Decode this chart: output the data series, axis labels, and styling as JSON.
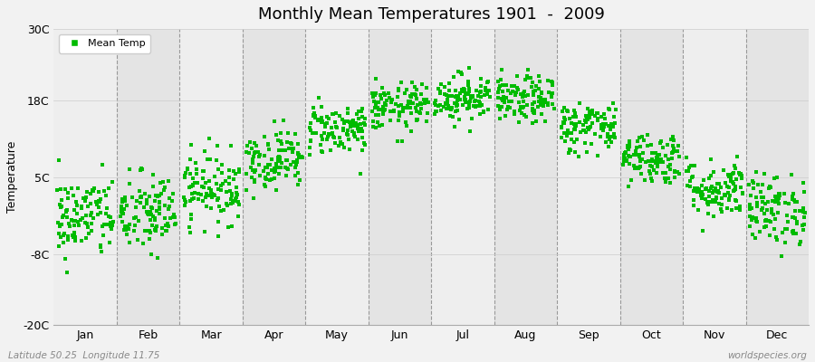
{
  "title": "Monthly Mean Temperatures 1901  -  2009",
  "ylabel": "Temperature",
  "footer_left": "Latitude 50.25  Longitude 11.75",
  "footer_right": "worldspecies.org",
  "legend_label": "Mean Temp",
  "dot_color": "#00bb00",
  "dot_size": 6,
  "years": 109,
  "month_labels": [
    "Jan",
    "Feb",
    "Mar",
    "Apr",
    "May",
    "Jun",
    "Jul",
    "Aug",
    "Sep",
    "Oct",
    "Nov",
    "Dec"
  ],
  "yticks": [
    -20,
    -8,
    5,
    18,
    30
  ],
  "ytick_labels": [
    "-20C",
    "-8C",
    "5C",
    "18C",
    "30C"
  ],
  "ylim": [
    -20,
    30
  ],
  "xlim": [
    0,
    12
  ],
  "bg_color_odd": "#eeeeee",
  "bg_color_even": "#e4e4e4",
  "fig_bg": "#f2f2f2",
  "vline_color": "#999999",
  "monthly_means": [
    -1.8,
    -1.2,
    3.2,
    8.0,
    13.2,
    16.8,
    18.5,
    18.0,
    13.5,
    8.2,
    3.0,
    -0.5
  ],
  "monthly_stds": [
    3.5,
    3.5,
    3.0,
    2.5,
    2.2,
    2.0,
    2.0,
    2.0,
    2.2,
    2.2,
    2.5,
    3.0
  ],
  "title_fontsize": 13,
  "axis_fontsize": 9,
  "ylabel_fontsize": 9,
  "legend_fontsize": 8
}
